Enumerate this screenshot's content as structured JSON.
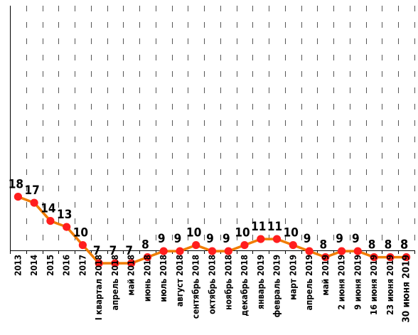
{
  "chart_data": {
    "type": "line",
    "title": "",
    "xlabel": "",
    "ylabel": "",
    "ylim": [
      0,
      30
    ],
    "grid": true,
    "categories": [
      "2013",
      "2014",
      "2015",
      "2016",
      "2017",
      "I квартал 2018",
      "апрель 2018",
      "май 2018",
      "июнь 2018",
      "июль 2018",
      "август 2018",
      "сентябрь 2018",
      "октябрь 2018",
      "ноябрь 2018",
      "декабрь 2018",
      "январь 2019",
      "февраль 2019",
      "март 2019",
      "апрель 2019",
      "май 2019",
      "2 июня 2019",
      "9 июня 2019",
      "16 июня 2019",
      "23 июня 2019",
      "30 июня 2019"
    ],
    "series": [
      {
        "values": [
          18,
          17,
          14,
          13,
          10,
          7,
          7,
          7,
          8,
          9,
          9,
          10,
          9,
          9,
          10,
          11,
          11,
          10,
          9,
          8,
          9,
          9,
          8,
          8,
          8
        ],
        "line_color": "#f07c00",
        "marker_color": "#ff1e1e"
      }
    ]
  }
}
